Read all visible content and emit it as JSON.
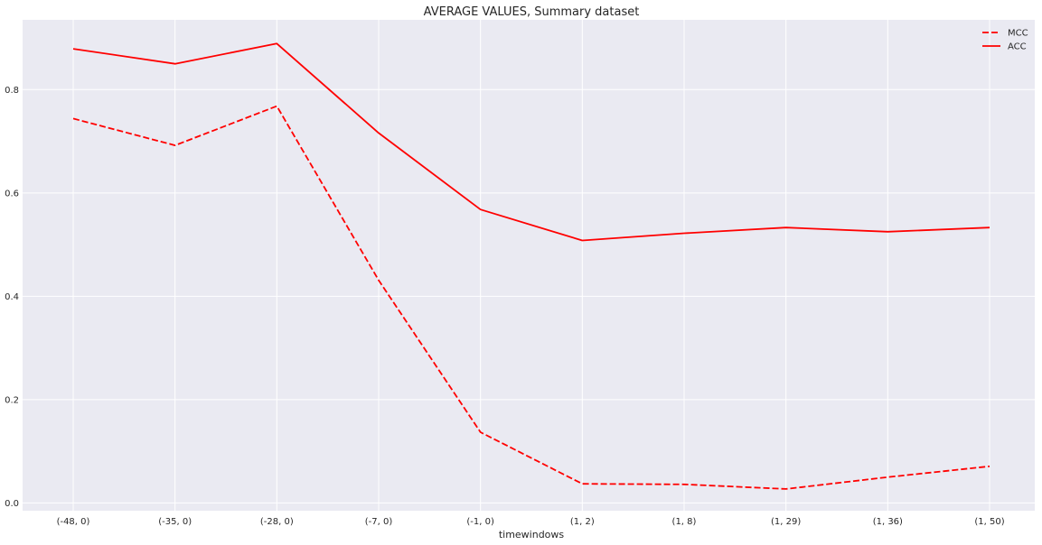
{
  "chart_data": {
    "type": "line",
    "title": "AVERAGE VALUES, Summary dataset",
    "xlabel": "timewindows",
    "ylabel": "",
    "categories": [
      "(-48, 0)",
      "(-35, 0)",
      "(-28, 0)",
      "(-7, 0)",
      "(-1, 0)",
      "(1, 2)",
      "(1, 8)",
      "(1, 29)",
      "(1, 36)",
      "(1, 50)"
    ],
    "yticks": [
      "0.0",
      "0.2",
      "0.4",
      "0.6",
      "0.8"
    ],
    "ylim": [
      -0.015,
      0.935
    ],
    "grid": true,
    "legend_position": "top-right",
    "series": [
      {
        "name": "MCC",
        "style": "dashed",
        "color": "#ff0000",
        "values": [
          0.744,
          0.692,
          0.768,
          0.431,
          0.137,
          0.037,
          0.036,
          0.027,
          0.05,
          0.071
        ]
      },
      {
        "name": "ACC",
        "style": "solid",
        "color": "#ff0000",
        "values": [
          0.879,
          0.85,
          0.889,
          0.716,
          0.568,
          0.508,
          0.522,
          0.533,
          0.525,
          0.533
        ]
      }
    ],
    "background_color": "#eaeaf2",
    "grid_color": "#ffffff"
  }
}
